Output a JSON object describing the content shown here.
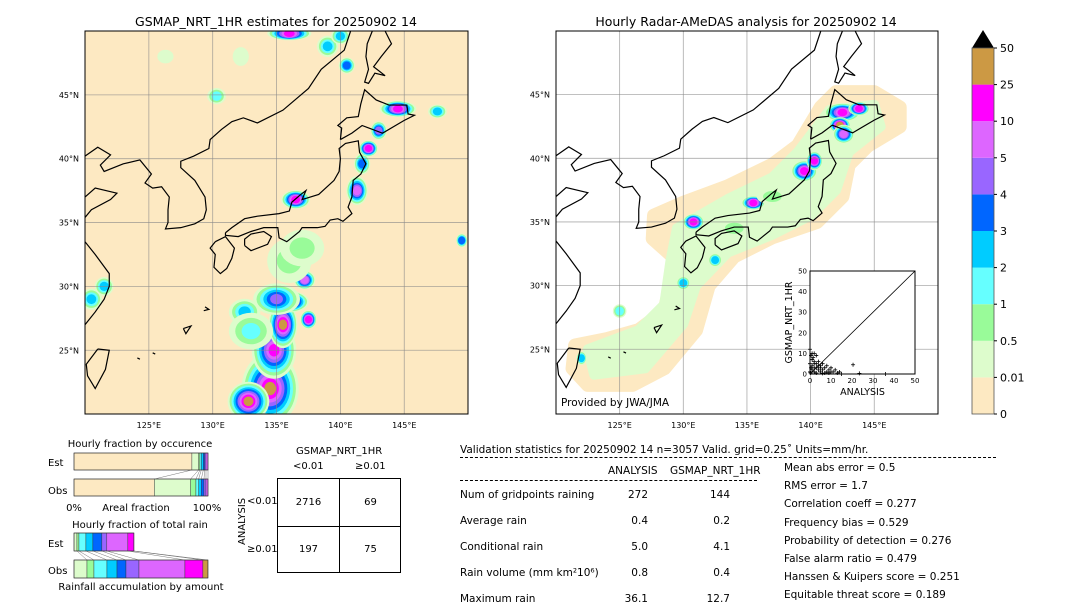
{
  "left_map": {
    "title": "GSMAP_NRT_1HR estimates for 20250902 14",
    "background": "#fde9c2",
    "lon_ticks": [
      "125°E",
      "130°E",
      "135°E",
      "140°E",
      "145°E"
    ],
    "lat_ticks": [
      "45°N",
      "40°N",
      "35°N",
      "30°N",
      "25°N"
    ],
    "rain_cells": [
      [
        134.5,
        22,
        2.0,
        2.6,
        9
      ],
      [
        132.8,
        21,
        1.4,
        1.3,
        9
      ],
      [
        134.8,
        25,
        1.5,
        2.0,
        8
      ],
      [
        135.5,
        27,
        0.9,
        1.6,
        9
      ],
      [
        136,
        28.8,
        1.3,
        0.6,
        9
      ],
      [
        135,
        29,
        1.6,
        1.0,
        6
      ],
      [
        137.2,
        30.5,
        0.6,
        0.5,
        7
      ],
      [
        137.5,
        27.4,
        0.4,
        0.5,
        8
      ],
      [
        132.5,
        28,
        1.0,
        0.8,
        4
      ],
      [
        133,
        26.5,
        1.5,
        1.2,
        3
      ],
      [
        136,
        32,
        1.5,
        1.5,
        2
      ],
      [
        137,
        33,
        1.5,
        1.2,
        2
      ],
      [
        136.5,
        36.8,
        0.9,
        0.5,
        8
      ],
      [
        141.3,
        37.5,
        0.6,
        0.9,
        7
      ],
      [
        141.7,
        39.6,
        0.4,
        0.6,
        5
      ],
      [
        142.2,
        40.8,
        0.5,
        0.4,
        8
      ],
      [
        143.0,
        42.2,
        0.4,
        0.5,
        6
      ],
      [
        144.5,
        43.9,
        1.2,
        0.4,
        8
      ],
      [
        147.6,
        43.7,
        0.5,
        0.3,
        4
      ],
      [
        126.3,
        48,
        0.4,
        0.3,
        1
      ],
      [
        130.3,
        44.9,
        0.5,
        0.4,
        3
      ],
      [
        120.5,
        29,
        0.6,
        0.6,
        4
      ],
      [
        121.5,
        30,
        0.5,
        0.5,
        4
      ],
      [
        132.2,
        48,
        0.4,
        0.5,
        1
      ],
      [
        136,
        49.8,
        1.5,
        0.3,
        8
      ],
      [
        139,
        48.8,
        0.6,
        0.6,
        4
      ],
      [
        140.5,
        47.3,
        0.4,
        0.4,
        5
      ],
      [
        140,
        49.6,
        0.5,
        0.4,
        4
      ],
      [
        149.5,
        33.6,
        0.2,
        0.3,
        5
      ]
    ]
  },
  "right_map": {
    "title": "Hourly Radar-AMeDAS analysis for 20250902 14",
    "credit": "Provided by JWA/JMA",
    "lon_ticks": [
      "125°E",
      "130°E",
      "135°E",
      "140°E",
      "145°E"
    ],
    "lat_ticks": [
      "45°N",
      "40°N",
      "35°N",
      "30°N",
      "25°N"
    ],
    "rain_cells": [
      [
        130.8,
        35,
        0.6,
        0.4,
        8
      ],
      [
        135.5,
        36.5,
        0.7,
        0.3,
        8
      ],
      [
        139.5,
        39,
        0.8,
        0.6,
        8
      ],
      [
        140.3,
        39.8,
        0.4,
        0.5,
        8
      ],
      [
        142.5,
        43.6,
        1.2,
        0.5,
        8
      ],
      [
        142.3,
        42.6,
        0.6,
        0.4,
        9
      ],
      [
        142.6,
        41.9,
        0.6,
        0.5,
        7
      ],
      [
        143.8,
        43.9,
        0.6,
        0.3,
        8
      ],
      [
        132.5,
        32,
        0.3,
        0.3,
        4
      ],
      [
        130,
        30.2,
        0.3,
        0.3,
        4
      ],
      [
        125,
        28,
        0.3,
        0.3,
        3
      ],
      [
        122,
        24.3,
        0.15,
        0.3,
        4
      ],
      [
        137,
        37,
        1.0,
        0.4,
        2
      ],
      [
        134,
        34.5,
        1.0,
        0.4,
        2
      ]
    ]
  },
  "colorbar": {
    "labels": [
      "50",
      "25",
      "10",
      "5",
      "4",
      "3",
      "2",
      "1",
      "0.5",
      "0.01",
      "0"
    ],
    "colors": [
      "#fde9c2",
      "#ddfccc",
      "#99fb99",
      "#66ffff",
      "#00ccff",
      "#0066ff",
      "#9966ff",
      "#dd66ff",
      "#ff00ff",
      "#cc9944"
    ],
    "extend_color": "#000000"
  },
  "chart_data": [
    {
      "type": "bar",
      "title": "Hourly fraction by occurence",
      "xlabel": "Areal fraction",
      "x_ticks": [
        "0%",
        "100%"
      ],
      "categories": [
        "Est",
        "Obs"
      ],
      "series_colors_index": [
        0,
        1,
        2,
        3,
        4,
        5,
        6,
        7,
        8,
        9
      ],
      "values_percent": {
        "Est": [
          88,
          5,
          1,
          1,
          1.5,
          1,
          1,
          1.5,
          0,
          0
        ],
        "Obs": [
          60,
          27,
          4,
          2,
          2,
          2,
          1.5,
          1.5,
          0,
          0
        ]
      }
    },
    {
      "type": "bar",
      "title": "Hourly fraction of total rain",
      "xlabel": "Rainfall accumulation by amount",
      "categories": [
        "Est",
        "Obs"
      ],
      "values_percent": {
        "Est": [
          0,
          2.2,
          1.5,
          5.2,
          5.2,
          6.7,
          3.7,
          15.7,
          4.5,
          0
        ],
        "Obs": [
          0,
          9.7,
          5.2,
          9.7,
          7.5,
          6.7,
          9.7,
          34.3,
          13.4,
          3.7
        ]
      }
    },
    {
      "type": "table",
      "title": "GSMAP_NRT_1HR",
      "col_labels": [
        "<0.01",
        "≥0.01"
      ],
      "row_title": "ANALYSIS",
      "row_labels": [
        "<0.01",
        "≥0.01"
      ],
      "cells": [
        [
          "2716",
          "69"
        ],
        [
          "197",
          "75"
        ]
      ]
    },
    {
      "type": "scatter",
      "xlabel": "ANALYSIS",
      "ylabel": "GSMAP_NRT_1HR",
      "xlim": [
        0,
        50
      ],
      "ylim": [
        0,
        50
      ],
      "ticks": [
        "0",
        "10",
        "20",
        "30",
        "40",
        "50"
      ],
      "points": [
        [
          0,
          12
        ],
        [
          0.5,
          9
        ],
        [
          1,
          10
        ],
        [
          1.5,
          8
        ],
        [
          2,
          10
        ],
        [
          3,
          9
        ],
        [
          1,
          7
        ],
        [
          2,
          6
        ],
        [
          3,
          5
        ],
        [
          4,
          6
        ],
        [
          5,
          4
        ],
        [
          6,
          5
        ],
        [
          7,
          3
        ],
        [
          8,
          4
        ],
        [
          9,
          2
        ],
        [
          10,
          3
        ],
        [
          11,
          1
        ],
        [
          12,
          2
        ],
        [
          13,
          0.5
        ],
        [
          14,
          1
        ],
        [
          15,
          0
        ],
        [
          20.5,
          4.5
        ],
        [
          23.5,
          0.3
        ],
        [
          36,
          0
        ],
        [
          0,
          5
        ],
        [
          0.5,
          3
        ],
        [
          1,
          2
        ],
        [
          2,
          1
        ],
        [
          3,
          0.5
        ],
        [
          4,
          2
        ],
        [
          5,
          1
        ],
        [
          6,
          2
        ],
        [
          7,
          0.5
        ],
        [
          8,
          1
        ],
        [
          1,
          4
        ],
        [
          2,
          3
        ],
        [
          0,
          1
        ],
        [
          0.3,
          0.5
        ],
        [
          4,
          4
        ],
        [
          5,
          3
        ],
        [
          6,
          0.3
        ],
        [
          9,
          0.5
        ],
        [
          10,
          1
        ],
        [
          3,
          3
        ],
        [
          2,
          5
        ]
      ]
    }
  ],
  "stats": {
    "header": "Validation statistics for 20250902 14  n=3057 Valid. grid=0.25˚ Units=mm/hr.",
    "col_analysis": "ANALYSIS",
    "col_gsmap": "GSMAP_NRT_1HR",
    "rows": [
      {
        "label": "Num of gridpoints raining",
        "a": "272",
        "g": "144"
      },
      {
        "label": "Average rain",
        "a": "0.4",
        "g": "0.2"
      },
      {
        "label": "Conditional rain",
        "a": "5.0",
        "g": "4.1"
      },
      {
        "label": "Rain volume (mm km²10⁶)",
        "a": "0.8",
        "g": "0.4"
      },
      {
        "label": "Maximum rain",
        "a": "36.1",
        "g": "12.7"
      }
    ],
    "scores": [
      "Mean abs error =    0.5",
      "RMS error =    1.7",
      "Correlation coeff =  0.277",
      "Frequency bias =  0.529",
      "Probability of detection =  0.276",
      "False alarm ratio =  0.479",
      "Hanssen & Kuipers score =  0.251",
      "Equitable threat score =  0.189"
    ]
  }
}
